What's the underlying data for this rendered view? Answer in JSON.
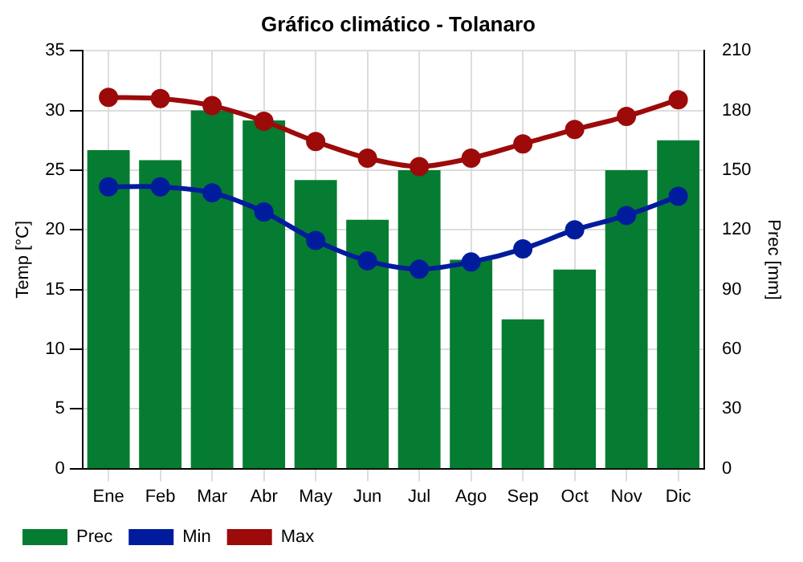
{
  "chart_data": {
    "type": "bar",
    "title": "Gráfico climático - Tolanaro",
    "ylabel": "Temp [°C]",
    "y2label": "Prec [mm]",
    "categories": [
      "Ene",
      "Feb",
      "Mar",
      "Abr",
      "May",
      "Jun",
      "Jul",
      "Ago",
      "Sep",
      "Oct",
      "Nov",
      "Dic"
    ],
    "series": [
      {
        "name": "Prec",
        "axis": "y2",
        "color": "#057c32",
        "values": [
          160,
          155,
          180,
          175,
          145,
          125,
          150,
          105,
          75,
          100,
          150,
          165
        ]
      },
      {
        "name": "Min",
        "type": "line",
        "color": "#001c9c",
        "values": [
          23.6,
          23.6,
          23.1,
          21.5,
          19.1,
          17.4,
          16.7,
          17.3,
          18.4,
          20.0,
          21.2,
          22.8
        ]
      },
      {
        "name": "Max",
        "type": "line",
        "color": "#9c0a0a",
        "values": [
          31.1,
          31.0,
          30.4,
          29.1,
          27.4,
          26.0,
          25.3,
          26.0,
          27.2,
          28.4,
          29.5,
          30.9
        ]
      }
    ],
    "ylim": [
      0,
      35
    ],
    "yticks": [
      0,
      5,
      10,
      15,
      20,
      25,
      30,
      35
    ],
    "y2lim": [
      0,
      210
    ],
    "y2ticks": [
      0,
      30,
      60,
      90,
      120,
      150,
      180,
      210
    ],
    "grid": true,
    "legend": "bottom left",
    "marker": "circle",
    "line_style": "solid"
  }
}
